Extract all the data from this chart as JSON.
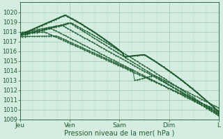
{
  "xlabel": "Pression niveau de la mer( hPa )",
  "xlim": [
    0,
    96
  ],
  "ylim": [
    1009,
    1021
  ],
  "yticks": [
    1009,
    1010,
    1011,
    1012,
    1013,
    1014,
    1015,
    1016,
    1017,
    1018,
    1019,
    1020
  ],
  "xtick_positions": [
    0,
    24,
    48,
    72,
    96
  ],
  "xtick_labels": [
    "Jeu",
    "Ven",
    "Sam",
    "Dim",
    "L"
  ],
  "background_color": "#d4ede0",
  "grid_color_major": "#9ec4b0",
  "grid_color_minor": "#b8d9c8",
  "line_color": "#1e5c30",
  "figsize": [
    3.2,
    2.0
  ],
  "dpi": 100
}
